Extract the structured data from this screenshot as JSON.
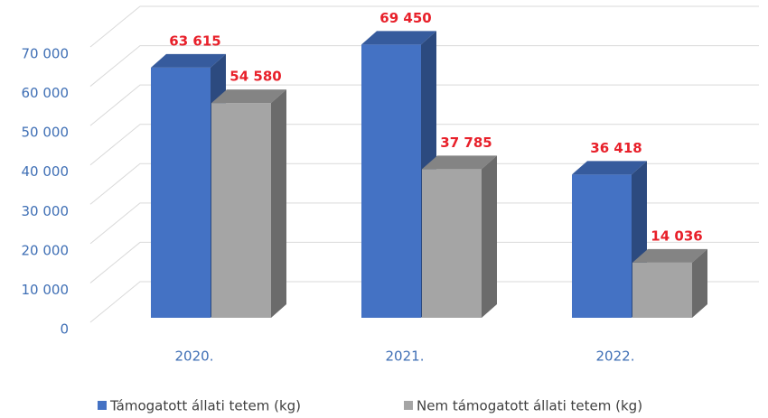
{
  "chart_data": {
    "type": "bar3d",
    "categories": [
      "2020.",
      "2021.",
      "2022."
    ],
    "series": [
      {
        "name": "Támogatott állati tetem (kg)",
        "color": "#4472c4",
        "values": [
          63615,
          69450,
          36418
        ],
        "value_labels": [
          "63 615",
          "69 450",
          "36 418"
        ]
      },
      {
        "name": "Nem támogatott állati tetem (kg)",
        "color": "#a5a5a5",
        "values": [
          54580,
          37785,
          14036
        ],
        "value_labels": [
          "54 580",
          "37 785",
          "14 036"
        ]
      }
    ],
    "ylim": [
      0,
      70000
    ],
    "yticks": [
      0,
      {
        "value": 10000,
        "label": "10 000"
      },
      {
        "value": 20000,
        "label": "20 000"
      },
      {
        "value": 30000,
        "label": "30 000"
      },
      {
        "value": 40000,
        "label": "40 000"
      },
      {
        "value": 50000,
        "label": "50 000"
      },
      {
        "value": 60000,
        "label": "60 000"
      },
      {
        "value": 70000,
        "label": "70 000"
      }
    ],
    "grid": true,
    "legend": "bottom",
    "value_label_color": "#e8202a"
  }
}
